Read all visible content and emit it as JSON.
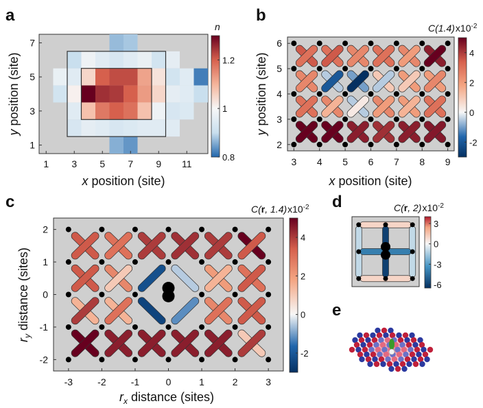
{
  "panel_labels": [
    "a",
    "b",
    "c",
    "d",
    "e"
  ],
  "colors": {
    "background": "#cfcfcf",
    "dot": "#000000",
    "outline": "#333333"
  },
  "chart_data": [
    {
      "panel": "a",
      "type": "heatmap",
      "xlabel_var": "x",
      "xlabel": " position (site)",
      "ylabel_var": "y",
      "ylabel": " position (site)",
      "xticks": [
        1,
        3,
        5,
        7,
        9,
        11
      ],
      "yticks": [
        1,
        3,
        5,
        7
      ],
      "xlim": [
        0.5,
        12.5
      ],
      "ylim": [
        0.5,
        7.5
      ],
      "colorbar": {
        "title": "n",
        "ticks": [
          0.8,
          1.0,
          1.2
        ],
        "range": [
          0.8,
          1.3
        ]
      },
      "cells": [
        {
          "x": 6,
          "y": 7,
          "v": 0.87
        },
        {
          "x": 7,
          "y": 7,
          "v": 0.88
        },
        {
          "x": 3,
          "y": 6,
          "v": 0.9
        },
        {
          "x": 4,
          "y": 6,
          "v": 0.98
        },
        {
          "x": 5,
          "y": 6,
          "v": 0.95
        },
        {
          "x": 6,
          "y": 6,
          "v": 0.93
        },
        {
          "x": 7,
          "y": 6,
          "v": 0.95
        },
        {
          "x": 8,
          "y": 6,
          "v": 0.97
        },
        {
          "x": 9,
          "y": 6,
          "v": 0.92
        },
        {
          "x": 10,
          "y": 6,
          "v": 0.96
        },
        {
          "x": 2,
          "y": 5,
          "v": 0.97
        },
        {
          "x": 3,
          "y": 5,
          "v": 0.95
        },
        {
          "x": 4,
          "y": 5,
          "v": 1.05
        },
        {
          "x": 5,
          "y": 5,
          "v": 1.2
        },
        {
          "x": 6,
          "y": 5,
          "v": 1.22
        },
        {
          "x": 7,
          "y": 5,
          "v": 1.22
        },
        {
          "x": 8,
          "y": 5,
          "v": 1.12
        },
        {
          "x": 9,
          "y": 5,
          "v": 1.03
        },
        {
          "x": 10,
          "y": 5,
          "v": 0.92
        },
        {
          "x": 11,
          "y": 5,
          "v": 0.95
        },
        {
          "x": 12,
          "y": 5,
          "v": 0.82
        },
        {
          "x": 2,
          "y": 4,
          "v": 0.92
        },
        {
          "x": 3,
          "y": 4,
          "v": 1.01
        },
        {
          "x": 4,
          "y": 4,
          "v": 1.3
        },
        {
          "x": 5,
          "y": 4,
          "v": 1.25
        },
        {
          "x": 6,
          "y": 4,
          "v": 1.24
        },
        {
          "x": 7,
          "y": 4,
          "v": 1.2
        },
        {
          "x": 8,
          "y": 4,
          "v": 1.13
        },
        {
          "x": 9,
          "y": 4,
          "v": 1.05
        },
        {
          "x": 10,
          "y": 4,
          "v": 0.96
        },
        {
          "x": 11,
          "y": 4,
          "v": 0.95
        },
        {
          "x": 12,
          "y": 4,
          "v": 0.9
        },
        {
          "x": 3,
          "y": 3,
          "v": 0.95
        },
        {
          "x": 4,
          "y": 3,
          "v": 1.08
        },
        {
          "x": 5,
          "y": 3,
          "v": 1.17
        },
        {
          "x": 6,
          "y": 3,
          "v": 1.2
        },
        {
          "x": 7,
          "y": 3,
          "v": 1.18
        },
        {
          "x": 8,
          "y": 3,
          "v": 1.08
        },
        {
          "x": 9,
          "y": 3,
          "v": 0.98
        },
        {
          "x": 10,
          "y": 3,
          "v": 0.93
        },
        {
          "x": 11,
          "y": 3,
          "v": 0.94
        },
        {
          "x": 3,
          "y": 2,
          "v": 0.93
        },
        {
          "x": 4,
          "y": 2,
          "v": 0.96
        },
        {
          "x": 5,
          "y": 2,
          "v": 0.95
        },
        {
          "x": 6,
          "y": 2,
          "v": 0.93
        },
        {
          "x": 7,
          "y": 2,
          "v": 0.94
        },
        {
          "x": 8,
          "y": 2,
          "v": 0.95
        },
        {
          "x": 9,
          "y": 2,
          "v": 0.95
        },
        {
          "x": 10,
          "y": 2,
          "v": 0.95
        },
        {
          "x": 6,
          "y": 1,
          "v": 0.86
        },
        {
          "x": 7,
          "y": 1,
          "v": 0.84
        }
      ],
      "boxes": [
        {
          "x0": 2.5,
          "x1": 9.5,
          "y0": 1.5,
          "y1": 6.5
        },
        {
          "x0": 3.5,
          "x1": 8.5,
          "y0": 2.5,
          "y1": 5.5
        }
      ]
    },
    {
      "panel": "b",
      "type": "heatmap",
      "xlabel_var": "x",
      "xlabel": " position (site)",
      "ylabel_var": "y",
      "ylabel": " position (site)",
      "xticks": [
        3,
        4,
        5,
        6,
        7,
        8,
        9
      ],
      "yticks": [
        2,
        3,
        4,
        5,
        6
      ],
      "xlim": [
        2.75,
        9.25
      ],
      "ylim": [
        1.75,
        6.25
      ],
      "colorbar": {
        "title": "C(1.4)",
        "exponent": "x10",
        "exponent_sup": "-2",
        "ticks": [
          -2,
          0,
          2,
          4
        ],
        "range": [
          -3,
          5
        ]
      },
      "dot_sites": {
        "x": [
          3,
          4,
          5,
          6,
          7,
          8,
          9
        ],
        "y": [
          2,
          3,
          4,
          5,
          6
        ]
      },
      "plaquettes": [
        {
          "cx": 3.5,
          "cy": 2.5,
          "a": 5.0,
          "b": 5.0
        },
        {
          "cx": 4.5,
          "cy": 2.5,
          "a": 5.0,
          "b": 5.0
        },
        {
          "cx": 5.5,
          "cy": 2.5,
          "a": 4.5,
          "b": 4.5
        },
        {
          "cx": 6.5,
          "cy": 2.5,
          "a": 4.2,
          "b": 4.2
        },
        {
          "cx": 7.5,
          "cy": 2.5,
          "a": 4.5,
          "b": 4.5
        },
        {
          "cx": 8.5,
          "cy": 2.5,
          "a": 4.6,
          "b": 4.6
        },
        {
          "cx": 3.5,
          "cy": 3.5,
          "a": 3.0,
          "b": 3.0
        },
        {
          "cx": 4.5,
          "cy": 3.5,
          "a": 1.5,
          "b": 2.5
        },
        {
          "cx": 5.5,
          "cy": 3.5,
          "a": 0.3,
          "b": -0.5
        },
        {
          "cx": 6.5,
          "cy": 3.5,
          "a": 2.0,
          "b": 2.5
        },
        {
          "cx": 7.5,
          "cy": 3.5,
          "a": 1.5,
          "b": 2.0
        },
        {
          "cx": 8.5,
          "cy": 3.5,
          "a": 3.0,
          "b": 3.0
        },
        {
          "cx": 3.5,
          "cy": 4.5,
          "a": 2.5,
          "b": 2.5
        },
        {
          "cx": 4.5,
          "cy": 4.5,
          "a": -2.0,
          "b": -0.5
        },
        {
          "cx": 5.5,
          "cy": 4.5,
          "a": -3.0,
          "b": -1.0
        },
        {
          "cx": 6.5,
          "cy": 4.5,
          "a": -0.5,
          "b": 1.0
        },
        {
          "cx": 7.5,
          "cy": 4.5,
          "a": 1.0,
          "b": 2.0
        },
        {
          "cx": 8.5,
          "cy": 4.5,
          "a": 2.5,
          "b": 2.0
        },
        {
          "cx": 3.5,
          "cy": 5.5,
          "a": 3.0,
          "b": 3.5
        },
        {
          "cx": 4.5,
          "cy": 5.5,
          "a": 3.5,
          "b": 3.0
        },
        {
          "cx": 5.5,
          "cy": 5.5,
          "a": 2.5,
          "b": 2.5
        },
        {
          "cx": 6.5,
          "cy": 5.5,
          "a": 3.0,
          "b": 3.0
        },
        {
          "cx": 7.5,
          "cy": 5.5,
          "a": 2.0,
          "b": 2.5
        },
        {
          "cx": 8.5,
          "cy": 5.5,
          "a": 5.0,
          "b": 4.5
        }
      ]
    },
    {
      "panel": "c",
      "type": "heatmap",
      "xlabel_var": "r",
      "xlabel_sub": "x",
      "xlabel": " distance (sites)",
      "ylabel_var": "r",
      "ylabel_sub": "y",
      "ylabel": " distance (sites)",
      "xticks": [
        -3,
        -2,
        -1,
        0,
        1,
        2,
        3
      ],
      "xtick_labels": [
        "-3",
        "-2",
        "-1",
        "0",
        "1",
        "2",
        "3"
      ],
      "yticks": [
        -2,
        -1,
        0,
        1,
        2
      ],
      "ytick_labels": [
        "-2",
        "-1",
        "0",
        "1",
        "2"
      ],
      "xlim": [
        -3.45,
        3.45
      ],
      "ylim": [
        -2.35,
        2.35
      ],
      "colorbar": {
        "title": "C(r, 1.4)",
        "exponent": "x10",
        "exponent_sup": "-2",
        "ticks": [
          -2,
          0,
          2,
          4
        ],
        "range": [
          -3,
          5
        ]
      },
      "dot_sites": {
        "x": [
          -3,
          -2,
          -1,
          0,
          1,
          2,
          3
        ],
        "y": [
          -2,
          -1,
          0,
          1,
          2
        ]
      },
      "origin_dots": [
        [
          0,
          0.2
        ],
        [
          0,
          -0.05
        ]
      ],
      "plaquettes": [
        {
          "cx": -2.5,
          "cy": -1.5,
          "a": 5.0,
          "b": 5.0
        },
        {
          "cx": -1.5,
          "cy": -1.5,
          "a": 4.5,
          "b": 4.5
        },
        {
          "cx": -0.5,
          "cy": -1.5,
          "a": 4.5,
          "b": 4.5
        },
        {
          "cx": 0.5,
          "cy": -1.5,
          "a": 4.5,
          "b": 4.5
        },
        {
          "cx": 1.5,
          "cy": -1.5,
          "a": 4.5,
          "b": 4.5
        },
        {
          "cx": 2.5,
          "cy": -1.5,
          "a": 4.0,
          "b": 1.0
        },
        {
          "cx": -2.5,
          "cy": -0.5,
          "a": 4.0,
          "b": 1.5
        },
        {
          "cx": -1.5,
          "cy": -0.5,
          "a": 3.0,
          "b": 1.5
        },
        {
          "cx": -0.5,
          "cy": -0.5,
          "a": null,
          "b": -2.5
        },
        {
          "cx": 0.5,
          "cy": -0.5,
          "a": -1.2,
          "b": null
        },
        {
          "cx": 1.5,
          "cy": -0.5,
          "a": 3.0,
          "b": 2.5
        },
        {
          "cx": 2.5,
          "cy": -0.5,
          "a": 3.5,
          "b": 3.5
        },
        {
          "cx": -2.5,
          "cy": 0.5,
          "a": 3.5,
          "b": 3.5
        },
        {
          "cx": -1.5,
          "cy": 0.5,
          "a": 1.0,
          "b": 2.5
        },
        {
          "cx": -0.5,
          "cy": 0.5,
          "a": -2.2,
          "b": null
        },
        {
          "cx": 0.5,
          "cy": 0.5,
          "a": null,
          "b": -0.5
        },
        {
          "cx": 1.5,
          "cy": 0.5,
          "a": 1.5,
          "b": 2.0
        },
        {
          "cx": 2.5,
          "cy": 0.5,
          "a": 3.5,
          "b": 3.0
        },
        {
          "cx": -2.5,
          "cy": 1.5,
          "a": 3.5,
          "b": 3.5
        },
        {
          "cx": -1.5,
          "cy": 1.5,
          "a": 3.0,
          "b": 3.0
        },
        {
          "cx": -0.5,
          "cy": 1.5,
          "a": 4.0,
          "b": 4.0
        },
        {
          "cx": 0.5,
          "cy": 1.5,
          "a": 4.2,
          "b": 4.2
        },
        {
          "cx": 1.5,
          "cy": 1.5,
          "a": 4.0,
          "b": 4.0
        },
        {
          "cx": 2.5,
          "cy": 1.5,
          "a": 3.5,
          "b": 5.0
        }
      ]
    },
    {
      "panel": "d",
      "type": "heatmap",
      "colorbar": {
        "title": "C(r, 2)",
        "exponent": "x10",
        "exponent_sup": "-2",
        "ticks": [
          3,
          0,
          -3,
          -6
        ],
        "tick_labels": [
          "3",
          "0",
          "-3",
          "-6"
        ],
        "range": [
          -6.5,
          4
        ]
      },
      "bonds": [
        {
          "x1": -0.95,
          "y1": 1.0,
          "x2": 0.95,
          "y2": 1.0,
          "v": 1.0
        },
        {
          "x1": -0.95,
          "y1": -1.0,
          "x2": 0.95,
          "y2": -1.0,
          "v": 1.0
        },
        {
          "x1": -1.0,
          "y1": -0.95,
          "x2": -1.0,
          "y2": 0.95,
          "v": -1.0
        },
        {
          "x1": 1.0,
          "y1": -0.95,
          "x2": 1.0,
          "y2": 0.95,
          "v": -1.0
        },
        {
          "x1": 0.0,
          "y1": -0.95,
          "x2": 0.0,
          "y2": 0.95,
          "v": -6.0
        },
        {
          "x1": -0.95,
          "y1": 0.0,
          "x2": 0.95,
          "y2": 0.0,
          "v": -4.0
        }
      ],
      "dot_sites": [
        [
          -1,
          1
        ],
        [
          0,
          1
        ],
        [
          1,
          1
        ],
        [
          -1,
          0
        ],
        [
          1,
          0
        ],
        [
          -1,
          -1
        ],
        [
          0,
          -1
        ],
        [
          1,
          -1
        ]
      ],
      "origin_dots": [
        [
          0,
          0.18
        ],
        [
          0,
          -0.12
        ]
      ]
    }
  ]
}
